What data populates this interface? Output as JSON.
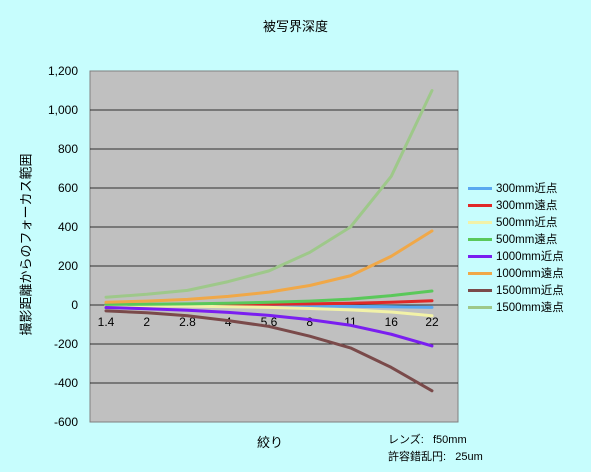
{
  "chart_data": {
    "type": "line",
    "title": "被写界深度",
    "xlabel": "絞り",
    "ylabel": "撮影距離からのフォーカス範囲",
    "categories": [
      "1.4",
      "2",
      "2.8",
      "4",
      "5.6",
      "8",
      "11",
      "16",
      "22"
    ],
    "ylim": [
      -600,
      1200
    ],
    "yticks": [
      "-600",
      "-400",
      "-200",
      "0",
      "200",
      "400",
      "600",
      "800",
      "1,000",
      "1,200"
    ],
    "grid": true,
    "legend_position": "right",
    "series": [
      {
        "name": "300mm近点",
        "color": "#5aa8f0",
        "values": [
          -1,
          -1.5,
          -2,
          -3,
          -4,
          -5,
          -7,
          -9,
          -12
        ]
      },
      {
        "name": "300mm遠点",
        "color": "#e02828",
        "values": [
          1,
          1.5,
          2,
          3,
          4,
          6,
          9,
          14,
          22
        ]
      },
      {
        "name": "500mm近点",
        "color": "#f2f2a8",
        "values": [
          -3,
          -4,
          -6,
          -9,
          -12,
          -18,
          -25,
          -36,
          -55
        ]
      },
      {
        "name": "500mm遠点",
        "color": "#5ac85a",
        "values": [
          3,
          4,
          6,
          9,
          14,
          20,
          30,
          48,
          72
        ]
      },
      {
        "name": "1000mm近点",
        "color": "#7a1ef0",
        "values": [
          -13,
          -19,
          -27,
          -38,
          -53,
          -75,
          -104,
          -150,
          -210
        ]
      },
      {
        "name": "1000mm遠点",
        "color": "#f0a848",
        "values": [
          14,
          20,
          29,
          44,
          66,
          100,
          150,
          250,
          380
        ]
      },
      {
        "name": "1500mm近点",
        "color": "#7a4a4a",
        "values": [
          -30,
          -40,
          -55,
          -80,
          -110,
          -160,
          -220,
          -320,
          -440
        ]
      },
      {
        "name": "1500mm遠点",
        "color": "#9ec88a",
        "values": [
          40,
          55,
          75,
          120,
          175,
          270,
          400,
          660,
          1100
        ]
      }
    ]
  },
  "notes": {
    "lens": "レンズ:   f50mm",
    "coc": "許容錯乱円:   25um"
  }
}
